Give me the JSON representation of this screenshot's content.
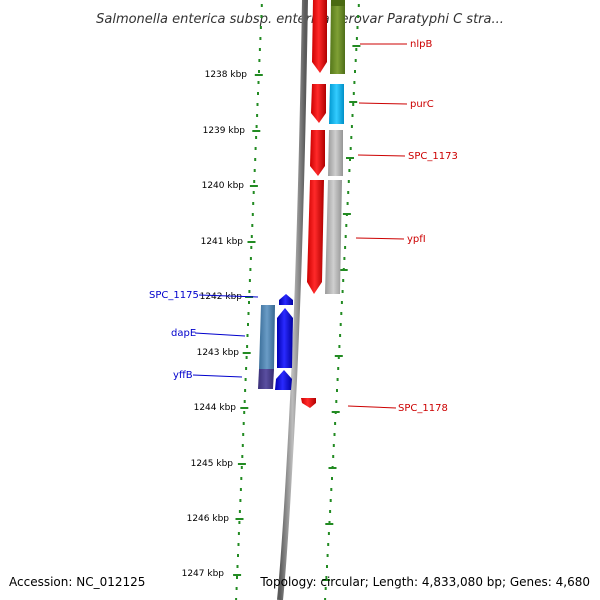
{
  "title": "Salmonella enterica subsp. enterica serovar Paratyphi C stra...",
  "footer": {
    "accession": "Accession: NC_012125",
    "info": "Topology: circular; Length: 4,833,080 bp; Genes: 4,680"
  },
  "ticks": [
    "1238 kbp",
    "1239 kbp",
    "1240 kbp",
    "1241 kbp",
    "1242 kbp",
    "1243 kbp",
    "1244 kbp",
    "1245 kbp",
    "1246 kbp",
    "1247 kbp"
  ],
  "genes": [
    {
      "name": "nlpB",
      "strand": "forward"
    },
    {
      "name": "purC",
      "strand": "forward"
    },
    {
      "name": "SPC_1173",
      "strand": "forward"
    },
    {
      "name": "ypfI",
      "strand": "forward"
    },
    {
      "name": "SPC_1175",
      "strand": "reverse"
    },
    {
      "name": "dapE",
      "strand": "reverse"
    },
    {
      "name": "yffB",
      "strand": "reverse"
    },
    {
      "name": "SPC_1178",
      "strand": "forward"
    }
  ],
  "colors": {
    "forward_gene": "#ff0000",
    "reverse_gene": "#0000ff",
    "forward_label": "#cc0000",
    "reverse_label": "#0000cc",
    "backbone": "#888888",
    "tick_marks": "#228b22",
    "cog_green": "#6b8e23",
    "cog_cyan": "#00bfff",
    "cog_gray": "#b0b0b0",
    "cog_steelblue": "#4682b4",
    "cog_navy": "#483d8b"
  }
}
